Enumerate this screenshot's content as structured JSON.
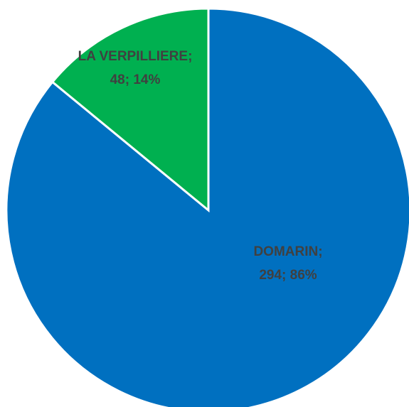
{
  "chart_data": {
    "type": "pie",
    "values": [
      294,
      48
    ],
    "value_labels": [
      [
        "DOMARIN;",
        "294; 86%"
      ],
      [
        "LA VERPILLIERE;",
        "48; 14%"
      ]
    ],
    "colors": [
      "#0070c0",
      "#00b050"
    ]
  }
}
